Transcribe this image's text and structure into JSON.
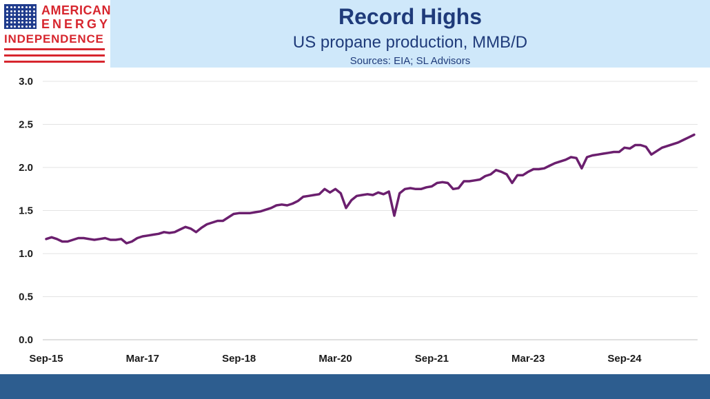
{
  "logo": {
    "line1": "AMERICAN",
    "line2": "ENERGY",
    "line3": "INDEPENDENCE",
    "red": "#d7262e",
    "blue": "#1f3b8c"
  },
  "header": {
    "background": "#cfe8fa",
    "text_color": "#1f3b7a"
  },
  "chart_data": {
    "type": "line",
    "title": "Record Highs",
    "subtitle": "US propane production, MMB/D",
    "sources": "Sources: EIA; SL Advisors",
    "xlabel": "",
    "ylabel": "",
    "ylim": [
      0,
      3.0
    ],
    "y_ticks": [
      "0.0",
      "0.5",
      "1.0",
      "1.5",
      "2.0",
      "2.5",
      "3.0"
    ],
    "x_ticks": [
      {
        "label": "Sep-15",
        "index": 0
      },
      {
        "label": "Mar-17",
        "index": 18
      },
      {
        "label": "Sep-18",
        "index": 36
      },
      {
        "label": "Mar-20",
        "index": 54
      },
      {
        "label": "Sep-21",
        "index": 72
      },
      {
        "label": "Mar-23",
        "index": 90
      },
      {
        "label": "Sep-24",
        "index": 108
      }
    ],
    "x_start": "Sep-15",
    "frequency": "monthly",
    "grid": true,
    "legend": "none",
    "line_color": "#6b1f6e",
    "series": [
      {
        "values": [
          1.17,
          1.19,
          1.17,
          1.14,
          1.14,
          1.16,
          1.18,
          1.18,
          1.17,
          1.16,
          1.17,
          1.18,
          1.16,
          1.16,
          1.17,
          1.12,
          1.14,
          1.18,
          1.2,
          1.21,
          1.22,
          1.23,
          1.25,
          1.24,
          1.25,
          1.28,
          1.31,
          1.29,
          1.25,
          1.3,
          1.34,
          1.36,
          1.38,
          1.38,
          1.42,
          1.46,
          1.47,
          1.47,
          1.47,
          1.48,
          1.49,
          1.51,
          1.53,
          1.56,
          1.57,
          1.56,
          1.58,
          1.61,
          1.66,
          1.67,
          1.68,
          1.69,
          1.75,
          1.71,
          1.75,
          1.7,
          1.53,
          1.62,
          1.67,
          1.68,
          1.69,
          1.68,
          1.71,
          1.69,
          1.72,
          1.44,
          1.7,
          1.75,
          1.76,
          1.75,
          1.75,
          1.77,
          1.78,
          1.82,
          1.83,
          1.82,
          1.75,
          1.76,
          1.84,
          1.84,
          1.85,
          1.86,
          1.9,
          1.92,
          1.97,
          1.95,
          1.92,
          1.82,
          1.91,
          1.91,
          1.95,
          1.98,
          1.98,
          1.99,
          2.02,
          2.05,
          2.07,
          2.09,
          2.12,
          2.11,
          1.99,
          2.12,
          2.14,
          2.15,
          2.16,
          2.17,
          2.18,
          2.18,
          2.23,
          2.22,
          2.26,
          2.26,
          2.24,
          2.15,
          2.19,
          2.23,
          2.25,
          2.27,
          2.29,
          2.32,
          2.35,
          2.38
        ]
      }
    ]
  }
}
